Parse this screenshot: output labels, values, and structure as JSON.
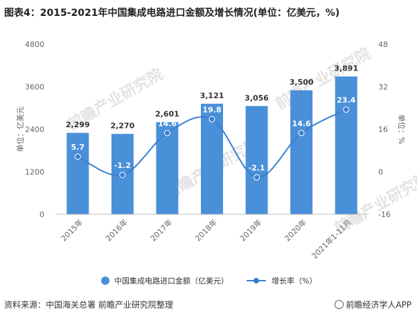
{
  "title": "图表4：2015-2021年中国集成电路进口金额及增长情况(单位：亿美元，%)",
  "footer": {
    "source": "资料来源：中国海关总署 前瞻产业研究院整理",
    "brand": "前瞻经济学人APP"
  },
  "watermark": "前瞻产业研究院",
  "colors": {
    "bar": "#4a90d9",
    "line": "#3a7fd0",
    "axis_text": "#666666"
  },
  "chart_data": {
    "type": "bar",
    "categories": [
      "2015年",
      "2016年",
      "2017年",
      "2018年",
      "2019年",
      "2020年",
      "2021年1-11月"
    ],
    "series": [
      {
        "name": "中国集成电路进口金额（亿美元）",
        "type": "bar",
        "axis": "left",
        "values": [
          2299,
          2270,
          2601,
          3121,
          3056,
          3500,
          3891
        ],
        "labels": [
          "2,299",
          "2,270",
          "2,601",
          "3,121",
          "3,056",
          "3,500",
          "3,891"
        ]
      },
      {
        "name": "增长率（%）",
        "type": "line",
        "axis": "right",
        "values": [
          5.7,
          -1.2,
          14.6,
          19.8,
          -2.1,
          14.6,
          23.4
        ],
        "labels": [
          "5.7",
          "-1.2",
          "14.6",
          "19.8",
          "-2.1",
          "14.6",
          "23.4"
        ]
      }
    ],
    "ylabel_left": "单位：亿美元",
    "ylabel_right": "单位：%",
    "ylim_left": [
      0,
      4800
    ],
    "yticks_left": [
      "0",
      "1200",
      "2400",
      "3600",
      "4800"
    ],
    "ylim_right": [
      -16,
      48
    ],
    "yticks_right": [
      "-16",
      "0",
      "16",
      "32",
      "48"
    ],
    "legend": "bottom",
    "grid": false
  }
}
